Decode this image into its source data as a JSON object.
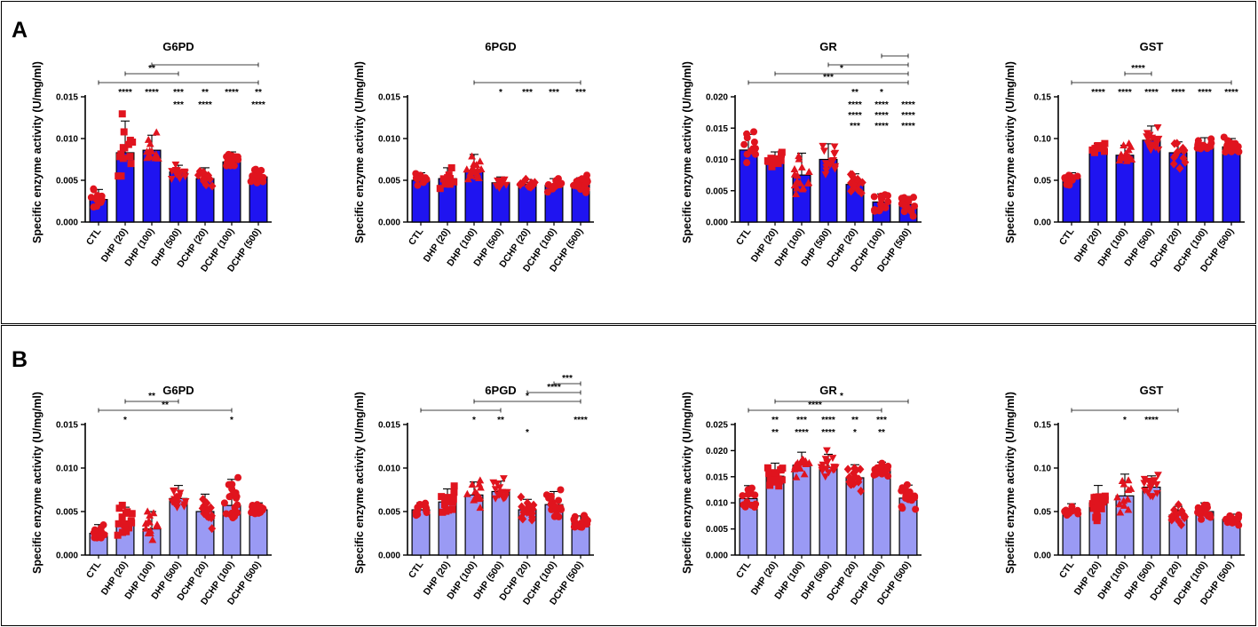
{
  "panels": [
    {
      "label": "A",
      "bar_color": "#1f14f0"
    },
    {
      "label": "B",
      "bar_color": "#9a9af4"
    }
  ],
  "ylabel": "Specific enzyme activity (U/mg/ml)",
  "categories": [
    "CTL",
    "DHP (20)",
    "DHP (100)",
    "DHP (500)",
    "DCHP (20)",
    "DCHP (100)",
    "DCHP (500)"
  ],
  "marker_shapes": [
    "circle",
    "square",
    "triangle",
    "triangle-down",
    "diamond",
    "circle",
    "circle"
  ],
  "point_color": "#e0141e",
  "chart_data": [
    {
      "type": "bar",
      "panel": "A",
      "title": "G6PD",
      "ylim": [
        0,
        0.015
      ],
      "yticks": [
        "0.000",
        "0.005",
        "0.010",
        "0.015"
      ],
      "ytick_values": [
        0,
        0.005,
        0.01,
        0.015
      ],
      "values": [
        0.0027,
        0.0083,
        0.0086,
        0.006,
        0.0052,
        0.0072,
        0.0054
      ],
      "errors": [
        0.0012,
        0.0038,
        0.0018,
        0.0008,
        0.0013,
        0.0012,
        0.0008
      ],
      "n_points": [
        12,
        14,
        14,
        14,
        12,
        16,
        16
      ],
      "stars": [
        "",
        "****",
        "****",
        "***",
        "**",
        "****",
        "**"
      ],
      "brackets": [
        {
          "from": 0,
          "to": 6,
          "stars": ""
        },
        {
          "from": 1,
          "to": 3,
          "stars": "**"
        },
        {
          "from": 2,
          "to": 6,
          "stars": ""
        }
      ],
      "extra_stars": [
        {
          "at": 3,
          "text": "***"
        },
        {
          "at": 4,
          "text": "****"
        },
        {
          "at": 6,
          "text": "****"
        }
      ]
    },
    {
      "type": "bar",
      "panel": "A",
      "title": "6PGD",
      "ylim": [
        0,
        0.015
      ],
      "yticks": [
        "0.000",
        "0.005",
        "0.010",
        "0.015"
      ],
      "ytick_values": [
        0,
        0.005,
        0.01,
        0.015
      ],
      "values": [
        0.005,
        0.0052,
        0.0062,
        0.0047,
        0.0045,
        0.0044,
        0.0045
      ],
      "errors": [
        0.0009,
        0.0013,
        0.0019,
        0.0007,
        0.0006,
        0.0008,
        0.0008
      ],
      "n_points": [
        12,
        14,
        16,
        12,
        14,
        16,
        18
      ],
      "stars": [
        "",
        "",
        "",
        "*",
        "***",
        "***",
        "***"
      ],
      "brackets": [
        {
          "from": 2,
          "to": 6,
          "stars": ""
        }
      ],
      "extra_stars": []
    },
    {
      "type": "bar",
      "panel": "A",
      "title": "GR",
      "ylim": [
        0,
        0.02
      ],
      "yticks": [
        "0.000",
        "0.005",
        "0.010",
        "0.015",
        "0.020"
      ],
      "ytick_values": [
        0,
        0.005,
        0.01,
        0.015,
        0.02
      ],
      "values": [
        0.0115,
        0.01,
        0.0075,
        0.01,
        0.006,
        0.0032,
        0.0028
      ],
      "errors": [
        0.0025,
        0.0012,
        0.0035,
        0.0025,
        0.0017,
        0.0013,
        0.0013
      ],
      "n_points": [
        12,
        12,
        16,
        14,
        16,
        14,
        16
      ],
      "stars": [
        "",
        "",
        "",
        "",
        "**",
        "*",
        ""
      ],
      "brackets": [
        {
          "from": 0,
          "to": 6,
          "stars": "***"
        },
        {
          "from": 1,
          "to": 6,
          "stars": "*"
        },
        {
          "from": 3,
          "to": 6,
          "stars": ""
        },
        {
          "from": 5,
          "to": 6,
          "stars": ""
        }
      ],
      "extra_stars": [
        {
          "at": 4,
          "text": "****"
        },
        {
          "at": 5,
          "text": "****"
        },
        {
          "at": 6,
          "text": "****"
        },
        {
          "at": 4,
          "text": "****"
        },
        {
          "at": 5,
          "text": "****"
        },
        {
          "at": 6,
          "text": "****"
        },
        {
          "at": 4,
          "text": "***"
        },
        {
          "at": 5,
          "text": "****"
        },
        {
          "at": 6,
          "text": "****"
        }
      ]
    },
    {
      "type": "bar",
      "panel": "A",
      "title": "GST",
      "ylim": [
        0,
        0.15
      ],
      "yticks": [
        "0.00",
        "0.05",
        "0.10",
        "0.15"
      ],
      "ytick_values": [
        0,
        0.05,
        0.1,
        0.15
      ],
      "values": [
        0.052,
        0.088,
        0.08,
        0.098,
        0.083,
        0.093,
        0.09
      ],
      "errors": [
        0.007,
        0.006,
        0.012,
        0.017,
        0.013,
        0.008,
        0.01
      ],
      "n_points": [
        12,
        12,
        16,
        16,
        14,
        14,
        18
      ],
      "stars": [
        "",
        "****",
        "****",
        "****",
        "****",
        "****",
        "****"
      ],
      "brackets": [
        {
          "from": 0,
          "to": 6,
          "stars": ""
        },
        {
          "from": 2,
          "to": 3,
          "stars": "****"
        }
      ],
      "extra_stars": []
    },
    {
      "type": "bar",
      "panel": "B",
      "title": "G6PD",
      "ylim": [
        0,
        0.015
      ],
      "yticks": [
        "0.000",
        "0.005",
        "0.010",
        "0.015"
      ],
      "ytick_values": [
        0,
        0.005,
        0.01,
        0.015
      ],
      "values": [
        0.0025,
        0.0035,
        0.003,
        0.0065,
        0.005,
        0.0057,
        0.0052
      ],
      "errors": [
        0.001,
        0.002,
        0.002,
        0.0015,
        0.002,
        0.003,
        0.0008
      ],
      "n_points": [
        12,
        16,
        14,
        16,
        16,
        20,
        16
      ],
      "stars": [
        "",
        "*",
        "",
        "",
        "",
        "*",
        ""
      ],
      "brackets": [
        {
          "from": 0,
          "to": 5,
          "stars": "**"
        },
        {
          "from": 1,
          "to": 3,
          "stars": "**"
        }
      ],
      "extra_stars": []
    },
    {
      "type": "bar",
      "panel": "B",
      "title": "6PGD",
      "ylim": [
        0,
        0.015
      ],
      "yticks": [
        "0.000",
        "0.005",
        "0.010",
        "0.015"
      ],
      "ytick_values": [
        0,
        0.005,
        0.01,
        0.015
      ],
      "values": [
        0.0052,
        0.0061,
        0.0069,
        0.0073,
        0.0052,
        0.0058,
        0.0037
      ],
      "errors": [
        0.0008,
        0.0015,
        0.0015,
        0.0012,
        0.0012,
        0.0015,
        0.0008
      ],
      "n_points": [
        12,
        18,
        14,
        16,
        16,
        18,
        18
      ],
      "stars": [
        "",
        "",
        "*",
        "**",
        "",
        "",
        "****"
      ],
      "brackets": [
        {
          "from": 0,
          "to": 3,
          "stars": ""
        },
        {
          "from": 2,
          "to": 6,
          "stars": "*"
        },
        {
          "from": 4,
          "to": 6,
          "stars": "****"
        },
        {
          "from": 5,
          "to": 6,
          "stars": "***"
        }
      ],
      "extra_stars": [
        {
          "at": 4,
          "text": "*"
        }
      ]
    },
    {
      "type": "bar",
      "panel": "B",
      "title": "GR",
      "ylim": [
        0,
        0.025
      ],
      "yticks": [
        "0.000",
        "0.005",
        "0.010",
        "0.015",
        "0.020",
        "0.025"
      ],
      "ytick_values": [
        0,
        0.005,
        0.01,
        0.015,
        0.02,
        0.025
      ],
      "values": [
        0.0108,
        0.0151,
        0.0172,
        0.0168,
        0.0148,
        0.0163,
        0.0109
      ],
      "errors": [
        0.0025,
        0.0025,
        0.0025,
        0.0025,
        0.0025,
        0.0015,
        0.0025
      ],
      "n_points": [
        12,
        18,
        16,
        18,
        16,
        18,
        16
      ],
      "stars": [
        "",
        "**",
        "***",
        "****",
        "**",
        "***",
        ""
      ],
      "brackets": [
        {
          "from": 0,
          "to": 5,
          "stars": "****"
        },
        {
          "from": 1,
          "to": 6,
          "stars": "*"
        }
      ],
      "extra_stars": [
        {
          "at": 1,
          "text": "**"
        },
        {
          "at": 2,
          "text": "****"
        },
        {
          "at": 3,
          "text": "****"
        },
        {
          "at": 4,
          "text": "*"
        },
        {
          "at": 5,
          "text": "**"
        }
      ]
    },
    {
      "type": "bar",
      "panel": "B",
      "title": "GST",
      "ylim": [
        0,
        0.15
      ],
      "yticks": [
        "0.00",
        "0.05",
        "0.10",
        "0.15"
      ],
      "ytick_values": [
        0,
        0.05,
        0.1,
        0.15
      ],
      "values": [
        0.052,
        0.06,
        0.068,
        0.078,
        0.046,
        0.05,
        0.041
      ],
      "errors": [
        0.007,
        0.02,
        0.025,
        0.013,
        0.01,
        0.01,
        0.006
      ],
      "n_points": [
        12,
        18,
        12,
        16,
        16,
        18,
        16
      ],
      "stars": [
        "",
        "",
        "*",
        "****",
        "",
        "",
        ""
      ],
      "brackets": [
        {
          "from": 0,
          "to": 4,
          "stars": ""
        }
      ],
      "extra_stars": []
    }
  ]
}
